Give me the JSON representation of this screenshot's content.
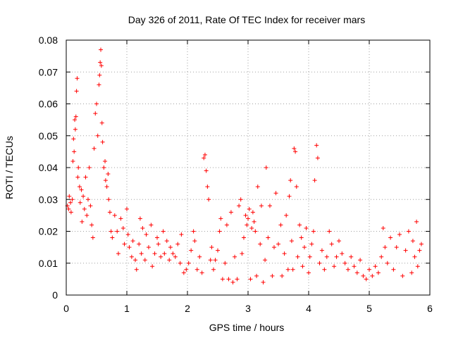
{
  "chart_data": {
    "type": "scatter",
    "title": "Day 326 of 2011, Rate Of TEC Index for receiver mars",
    "xlabel": "GPS time / hours",
    "ylabel": "ROTI / TECUs",
    "xlim": [
      0,
      6
    ],
    "ylim": [
      0,
      0.08
    ],
    "xticks": [
      "0",
      "1",
      "2",
      "3",
      "4",
      "5",
      "6"
    ],
    "yticks": [
      "0",
      "0.01",
      "0.02",
      "0.03",
      "0.04",
      "0.05",
      "0.06",
      "0.07",
      "0.08"
    ],
    "grid": true,
    "marker": "+",
    "color": "#ff0000",
    "series": [
      {
        "name": "ROTI",
        "points": [
          [
            0.02,
            0.028
          ],
          [
            0.04,
            0.027
          ],
          [
            0.05,
            0.031
          ],
          [
            0.07,
            0.029
          ],
          [
            0.08,
            0.026
          ],
          [
            0.1,
            0.03
          ],
          [
            0.11,
            0.042
          ],
          [
            0.12,
            0.049
          ],
          [
            0.13,
            0.045
          ],
          [
            0.14,
            0.055
          ],
          [
            0.15,
            0.052
          ],
          [
            0.16,
            0.056
          ],
          [
            0.17,
            0.064
          ],
          [
            0.18,
            0.068
          ],
          [
            0.19,
            0.037
          ],
          [
            0.2,
            0.04
          ],
          [
            0.22,
            0.034
          ],
          [
            0.23,
            0.029
          ],
          [
            0.25,
            0.033
          ],
          [
            0.26,
            0.023
          ],
          [
            0.28,
            0.031
          ],
          [
            0.3,
            0.027
          ],
          [
            0.32,
            0.037
          ],
          [
            0.34,
            0.025
          ],
          [
            0.36,
            0.03
          ],
          [
            0.38,
            0.04
          ],
          [
            0.4,
            0.028
          ],
          [
            0.42,
            0.022
          ],
          [
            0.44,
            0.018
          ],
          [
            0.46,
            0.046
          ],
          [
            0.48,
            0.057
          ],
          [
            0.5,
            0.06
          ],
          [
            0.52,
            0.05
          ],
          [
            0.54,
            0.066
          ],
          [
            0.55,
            0.069
          ],
          [
            0.56,
            0.073
          ],
          [
            0.57,
            0.077
          ],
          [
            0.58,
            0.072
          ],
          [
            0.59,
            0.054
          ],
          [
            0.6,
            0.048
          ],
          [
            0.62,
            0.04
          ],
          [
            0.64,
            0.042
          ],
          [
            0.65,
            0.036
          ],
          [
            0.67,
            0.034
          ],
          [
            0.69,
            0.038
          ],
          [
            0.7,
            0.03
          ],
          [
            0.72,
            0.026
          ],
          [
            0.74,
            0.02
          ],
          [
            0.76,
            0.018
          ],
          [
            0.8,
            0.025
          ],
          [
            0.84,
            0.02
          ],
          [
            0.86,
            0.013
          ],
          [
            0.9,
            0.024
          ],
          [
            0.94,
            0.021
          ],
          [
            0.96,
            0.016
          ],
          [
            1.0,
            0.027
          ],
          [
            1.02,
            0.019
          ],
          [
            1.04,
            0.015
          ],
          [
            1.08,
            0.012
          ],
          [
            1.1,
            0.017
          ],
          [
            1.14,
            0.011
          ],
          [
            1.16,
            0.008
          ],
          [
            1.2,
            0.016
          ],
          [
            1.22,
            0.024
          ],
          [
            1.24,
            0.013
          ],
          [
            1.26,
            0.021
          ],
          [
            1.3,
            0.011
          ],
          [
            1.32,
            0.019
          ],
          [
            1.36,
            0.015
          ],
          [
            1.4,
            0.022
          ],
          [
            1.42,
            0.009
          ],
          [
            1.46,
            0.013
          ],
          [
            1.5,
            0.018
          ],
          [
            1.52,
            0.016
          ],
          [
            1.56,
            0.012
          ],
          [
            1.6,
            0.02
          ],
          [
            1.62,
            0.013
          ],
          [
            1.66,
            0.017
          ],
          [
            1.7,
            0.011
          ],
          [
            1.72,
            0.015
          ],
          [
            1.76,
            0.013
          ],
          [
            1.8,
            0.012
          ],
          [
            1.84,
            0.016
          ],
          [
            1.88,
            0.01
          ],
          [
            1.9,
            0.019
          ],
          [
            1.94,
            0.007
          ],
          [
            1.98,
            0.008
          ],
          [
            2.02,
            0.01
          ],
          [
            2.06,
            0.014
          ],
          [
            2.1,
            0.02
          ],
          [
            2.12,
            0.017
          ],
          [
            2.16,
            0.008
          ],
          [
            2.2,
            0.012
          ],
          [
            2.24,
            0.007
          ],
          [
            2.27,
            0.043
          ],
          [
            2.29,
            0.044
          ],
          [
            2.31,
            0.039
          ],
          [
            2.33,
            0.034
          ],
          [
            2.35,
            0.03
          ],
          [
            2.38,
            0.011
          ],
          [
            2.4,
            0.015
          ],
          [
            2.43,
            0.008
          ],
          [
            2.46,
            0.011
          ],
          [
            2.5,
            0.014
          ],
          [
            2.53,
            0.02
          ],
          [
            2.55,
            0.024
          ],
          [
            2.58,
            0.005
          ],
          [
            2.62,
            0.01
          ],
          [
            2.65,
            0.022
          ],
          [
            2.68,
            0.005
          ],
          [
            2.72,
            0.026
          ],
          [
            2.75,
            0.004
          ],
          [
            2.78,
            0.012
          ],
          [
            2.82,
            0.005
          ],
          [
            2.85,
            0.028
          ],
          [
            2.88,
            0.03
          ],
          [
            2.9,
            0.013
          ],
          [
            2.93,
            0.018
          ],
          [
            2.96,
            0.025
          ],
          [
            2.98,
            0.022
          ],
          [
            3.0,
            0.024
          ],
          [
            3.02,
            0.027
          ],
          [
            3.04,
            0.005
          ],
          [
            3.06,
            0.021
          ],
          [
            3.08,
            0.026
          ],
          [
            3.1,
            0.023
          ],
          [
            3.12,
            0.02
          ],
          [
            3.14,
            0.006
          ],
          [
            3.16,
            0.034
          ],
          [
            3.2,
            0.016
          ],
          [
            3.22,
            0.028
          ],
          [
            3.25,
            0.004
          ],
          [
            3.28,
            0.011
          ],
          [
            3.3,
            0.04
          ],
          [
            3.33,
            0.018
          ],
          [
            3.36,
            0.028
          ],
          [
            3.4,
            0.006
          ],
          [
            3.43,
            0.015
          ],
          [
            3.46,
            0.032
          ],
          [
            3.5,
            0.016
          ],
          [
            3.54,
            0.022
          ],
          [
            3.56,
            0.006
          ],
          [
            3.6,
            0.013
          ],
          [
            3.63,
            0.025
          ],
          [
            3.66,
            0.008
          ],
          [
            3.68,
            0.031
          ],
          [
            3.7,
            0.036
          ],
          [
            3.72,
            0.017
          ],
          [
            3.74,
            0.008
          ],
          [
            3.76,
            0.046
          ],
          [
            3.78,
            0.045
          ],
          [
            3.8,
            0.034
          ],
          [
            3.82,
            0.012
          ],
          [
            3.85,
            0.022
          ],
          [
            3.88,
            0.018
          ],
          [
            3.9,
            0.009
          ],
          [
            3.93,
            0.015
          ],
          [
            3.96,
            0.021
          ],
          [
            4.0,
            0.007
          ],
          [
            4.02,
            0.012
          ],
          [
            4.05,
            0.016
          ],
          [
            4.08,
            0.02
          ],
          [
            4.1,
            0.036
          ],
          [
            4.13,
            0.047
          ],
          [
            4.15,
            0.043
          ],
          [
            4.18,
            0.01
          ],
          [
            4.22,
            0.014
          ],
          [
            4.26,
            0.008
          ],
          [
            4.3,
            0.012
          ],
          [
            4.34,
            0.02
          ],
          [
            4.38,
            0.016
          ],
          [
            4.42,
            0.009
          ],
          [
            4.46,
            0.012
          ],
          [
            4.5,
            0.017
          ],
          [
            4.55,
            0.013
          ],
          [
            4.6,
            0.01
          ],
          [
            4.65,
            0.008
          ],
          [
            4.7,
            0.012
          ],
          [
            4.75,
            0.009
          ],
          [
            4.8,
            0.007
          ],
          [
            4.85,
            0.011
          ],
          [
            4.9,
            0.006
          ],
          [
            4.95,
            0.005
          ],
          [
            5.0,
            0.008
          ],
          [
            5.05,
            0.006
          ],
          [
            5.1,
            0.009
          ],
          [
            5.15,
            0.007
          ],
          [
            5.2,
            0.012
          ],
          [
            5.23,
            0.021
          ],
          [
            5.26,
            0.015
          ],
          [
            5.3,
            0.01
          ],
          [
            5.35,
            0.018
          ],
          [
            5.4,
            0.008
          ],
          [
            5.45,
            0.015
          ],
          [
            5.5,
            0.019
          ],
          [
            5.55,
            0.006
          ],
          [
            5.6,
            0.014
          ],
          [
            5.65,
            0.02
          ],
          [
            5.7,
            0.007
          ],
          [
            5.72,
            0.017
          ],
          [
            5.75,
            0.012
          ],
          [
            5.78,
            0.023
          ],
          [
            5.8,
            0.009
          ],
          [
            5.83,
            0.014
          ],
          [
            5.86,
            0.016
          ]
        ]
      }
    ]
  }
}
